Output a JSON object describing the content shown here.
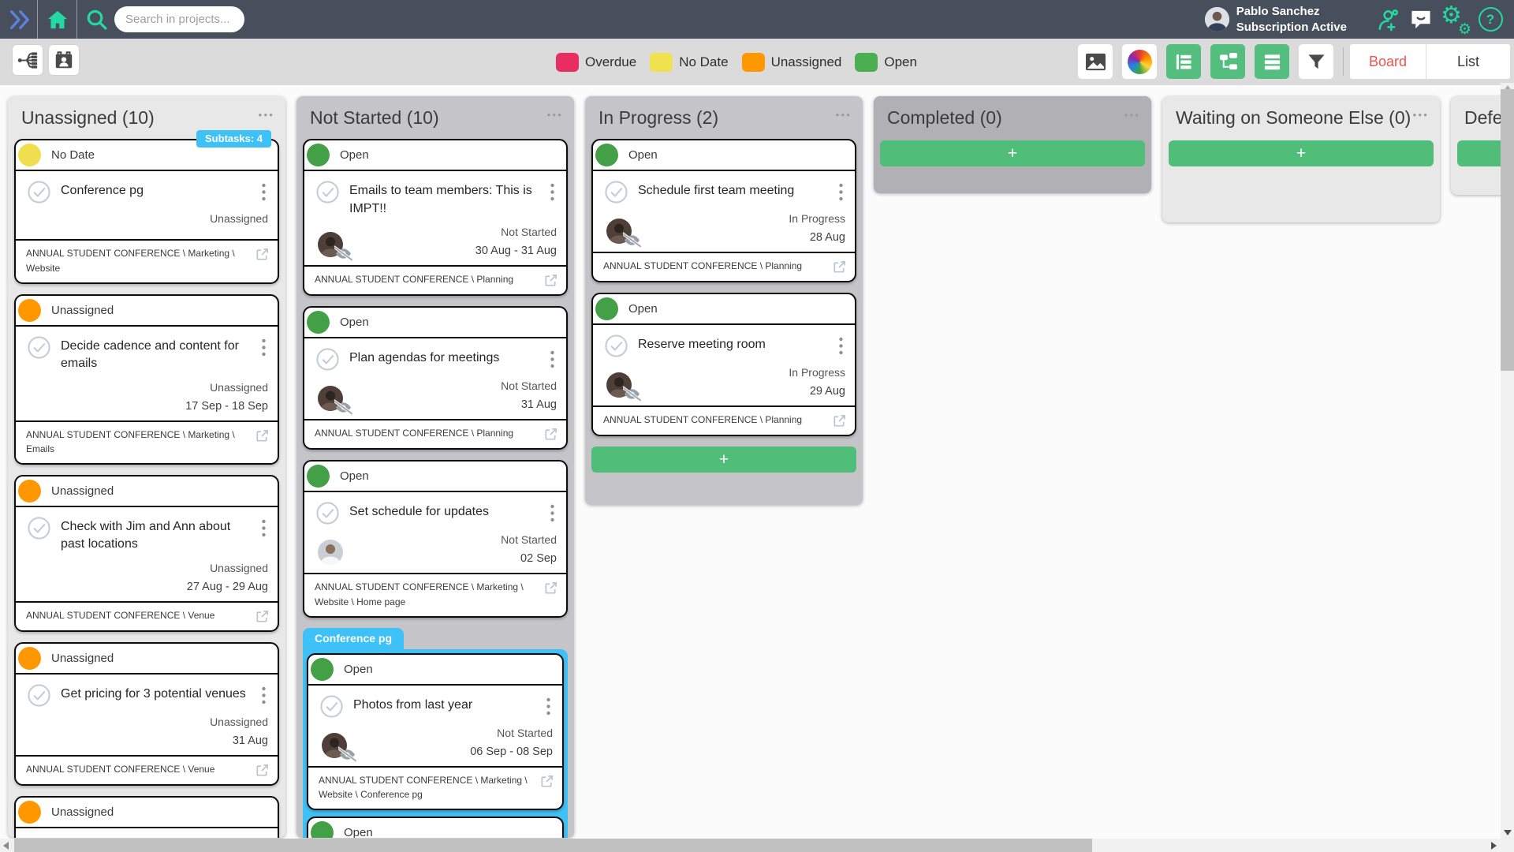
{
  "navbar": {
    "search_placeholder": "Search in projects...",
    "user_name": "Pablo Sanchez",
    "user_status": "Subscription Active",
    "icons": [
      "collapse-panel-icon",
      "home-icon",
      "search-icon",
      "invite-user-icon",
      "chat-icon",
      "settings-gears-icon",
      "help-icon"
    ],
    "accent_green": "#23D8A2",
    "chevron_blue": "#5E80DE"
  },
  "toolbar": {
    "left_icons": [
      "hierarchy-view-icon",
      "contacts-icon"
    ],
    "legend": [
      {
        "label": "Overdue",
        "color": "#E92D63"
      },
      {
        "label": "No Date",
        "color": "#F0E14E"
      },
      {
        "label": "Unassigned",
        "color": "#FF9800"
      },
      {
        "label": "Open",
        "color": "#4BAE50"
      }
    ],
    "right_icons": [
      "image-icon",
      "color-wheel-icon",
      "outline-view-icon",
      "flow-view-icon",
      "rows-view-icon",
      "filter-icon"
    ],
    "view_toggle": {
      "board_label": "Board",
      "list_label": "List",
      "active": "Board",
      "active_color": "#EF5350"
    }
  },
  "board": {
    "columns": [
      {
        "title": "Unassigned (10)",
        "shade": "light",
        "menu_icon": "ellipsis-icon",
        "items": [
          {
            "type": "card",
            "status": "No Date",
            "status_color": "#F0DE4E",
            "badge": "Subtasks: 4",
            "title": "Conference pg",
            "assignee": "Unassigned",
            "date": "",
            "path": "ANNUAL STUDENT CONFERENCE \\ Marketing \\ Website"
          },
          {
            "type": "card",
            "status": "Unassigned",
            "status_color": "#FF9800",
            "title": "Decide cadence and content for emails",
            "assignee": "Unassigned",
            "date": "17 Sep - 18 Sep",
            "path": "ANNUAL STUDENT CONFERENCE \\ Marketing \\ Emails"
          },
          {
            "type": "card",
            "status": "Unassigned",
            "status_color": "#FF9800",
            "title": "Check with Jim and Ann about past locations",
            "assignee": "Unassigned",
            "date": "27 Aug - 29 Aug",
            "path": "ANNUAL STUDENT CONFERENCE \\ Venue"
          },
          {
            "type": "card",
            "status": "Unassigned",
            "status_color": "#FF9800",
            "title": "Get pricing for 3 potential venues",
            "assignee": "Unassigned",
            "date": "31 Aug",
            "path": "ANNUAL STUDENT CONFERENCE \\ Venue"
          },
          {
            "type": "card",
            "partial": true,
            "status": "Unassigned",
            "status_color": "#FF9800"
          }
        ]
      },
      {
        "title": "Not Started (10)",
        "shade": "mid",
        "menu_icon": "ellipsis-icon",
        "items": [
          {
            "type": "card",
            "status": "Open",
            "status_color": "#43A047",
            "title": "Emails to team members: This is IMPT!!",
            "avatar": "woman-dark",
            "watch_off": true,
            "assignee": "Not Started",
            "date": "30 Aug - 31 Aug",
            "path": "ANNUAL STUDENT CONFERENCE \\ Planning"
          },
          {
            "type": "card",
            "status": "Open",
            "status_color": "#43A047",
            "title": "Plan agendas for meetings",
            "avatar": "woman-dark",
            "watch_off": true,
            "assignee": "Not Started",
            "date": "31 Aug",
            "path": "ANNUAL STUDENT CONFERENCE \\ Planning"
          },
          {
            "type": "card",
            "status": "Open",
            "status_color": "#43A047",
            "title": "Set schedule for updates",
            "avatar": "man-light",
            "watch_off": false,
            "assignee": "Not Started",
            "date": "02 Sep",
            "path": "ANNUAL STUDENT CONFERENCE \\ Marketing \\ Website \\ Home page"
          },
          {
            "type": "group",
            "label": "Conference pg",
            "color": "#3EC1F6",
            "cards": [
              {
                "type": "card",
                "status": "Open",
                "status_color": "#43A047",
                "title": "Photos from last year",
                "avatar": "woman-dark",
                "watch_off": true,
                "assignee": "Not Started",
                "date": "06 Sep - 08 Sep",
                "path": "ANNUAL STUDENT CONFERENCE \\ Marketing \\ Website \\ Conference pg"
              },
              {
                "type": "card",
                "partial": true,
                "head_only": true,
                "status": "Open",
                "status_color": "#43A047"
              }
            ]
          }
        ]
      },
      {
        "title": "In Progress (2)",
        "shade": "mid",
        "menu_icon": "ellipsis-icon",
        "add_label": "+",
        "items": [
          {
            "type": "card",
            "status": "Open",
            "status_color": "#43A047",
            "title": "Schedule first team meeting",
            "avatar": "woman-dark",
            "watch_off": true,
            "assignee": "In Progress",
            "date": "28 Aug",
            "path": "ANNUAL STUDENT CONFERENCE \\ Planning"
          },
          {
            "type": "card",
            "status": "Open",
            "status_color": "#43A047",
            "title": "Reserve meeting room",
            "avatar": "woman-dark",
            "watch_off": true,
            "assignee": "In Progress",
            "date": "29 Aug",
            "path": "ANNUAL STUDENT CONFERENCE \\ Planning"
          }
        ]
      },
      {
        "title": "Completed (0)",
        "shade": "dark",
        "menu_icon": "ellipsis-icon",
        "add_label": "+",
        "items": []
      },
      {
        "title": "Waiting on Someone Else (0)",
        "shade": "light",
        "menu_icon": "ellipsis-icon",
        "add_label": "+",
        "items": []
      },
      {
        "title": "Defe",
        "shade": "light",
        "add_label": "+",
        "items": []
      }
    ]
  },
  "scrollbars": {
    "horizontal": {
      "left_arrow": "scroll-left-icon",
      "right_arrow": "scroll-right-icon"
    },
    "vertical": {
      "up_arrow": "scroll-up-icon",
      "down_arrow": "scroll-down-icon"
    }
  }
}
